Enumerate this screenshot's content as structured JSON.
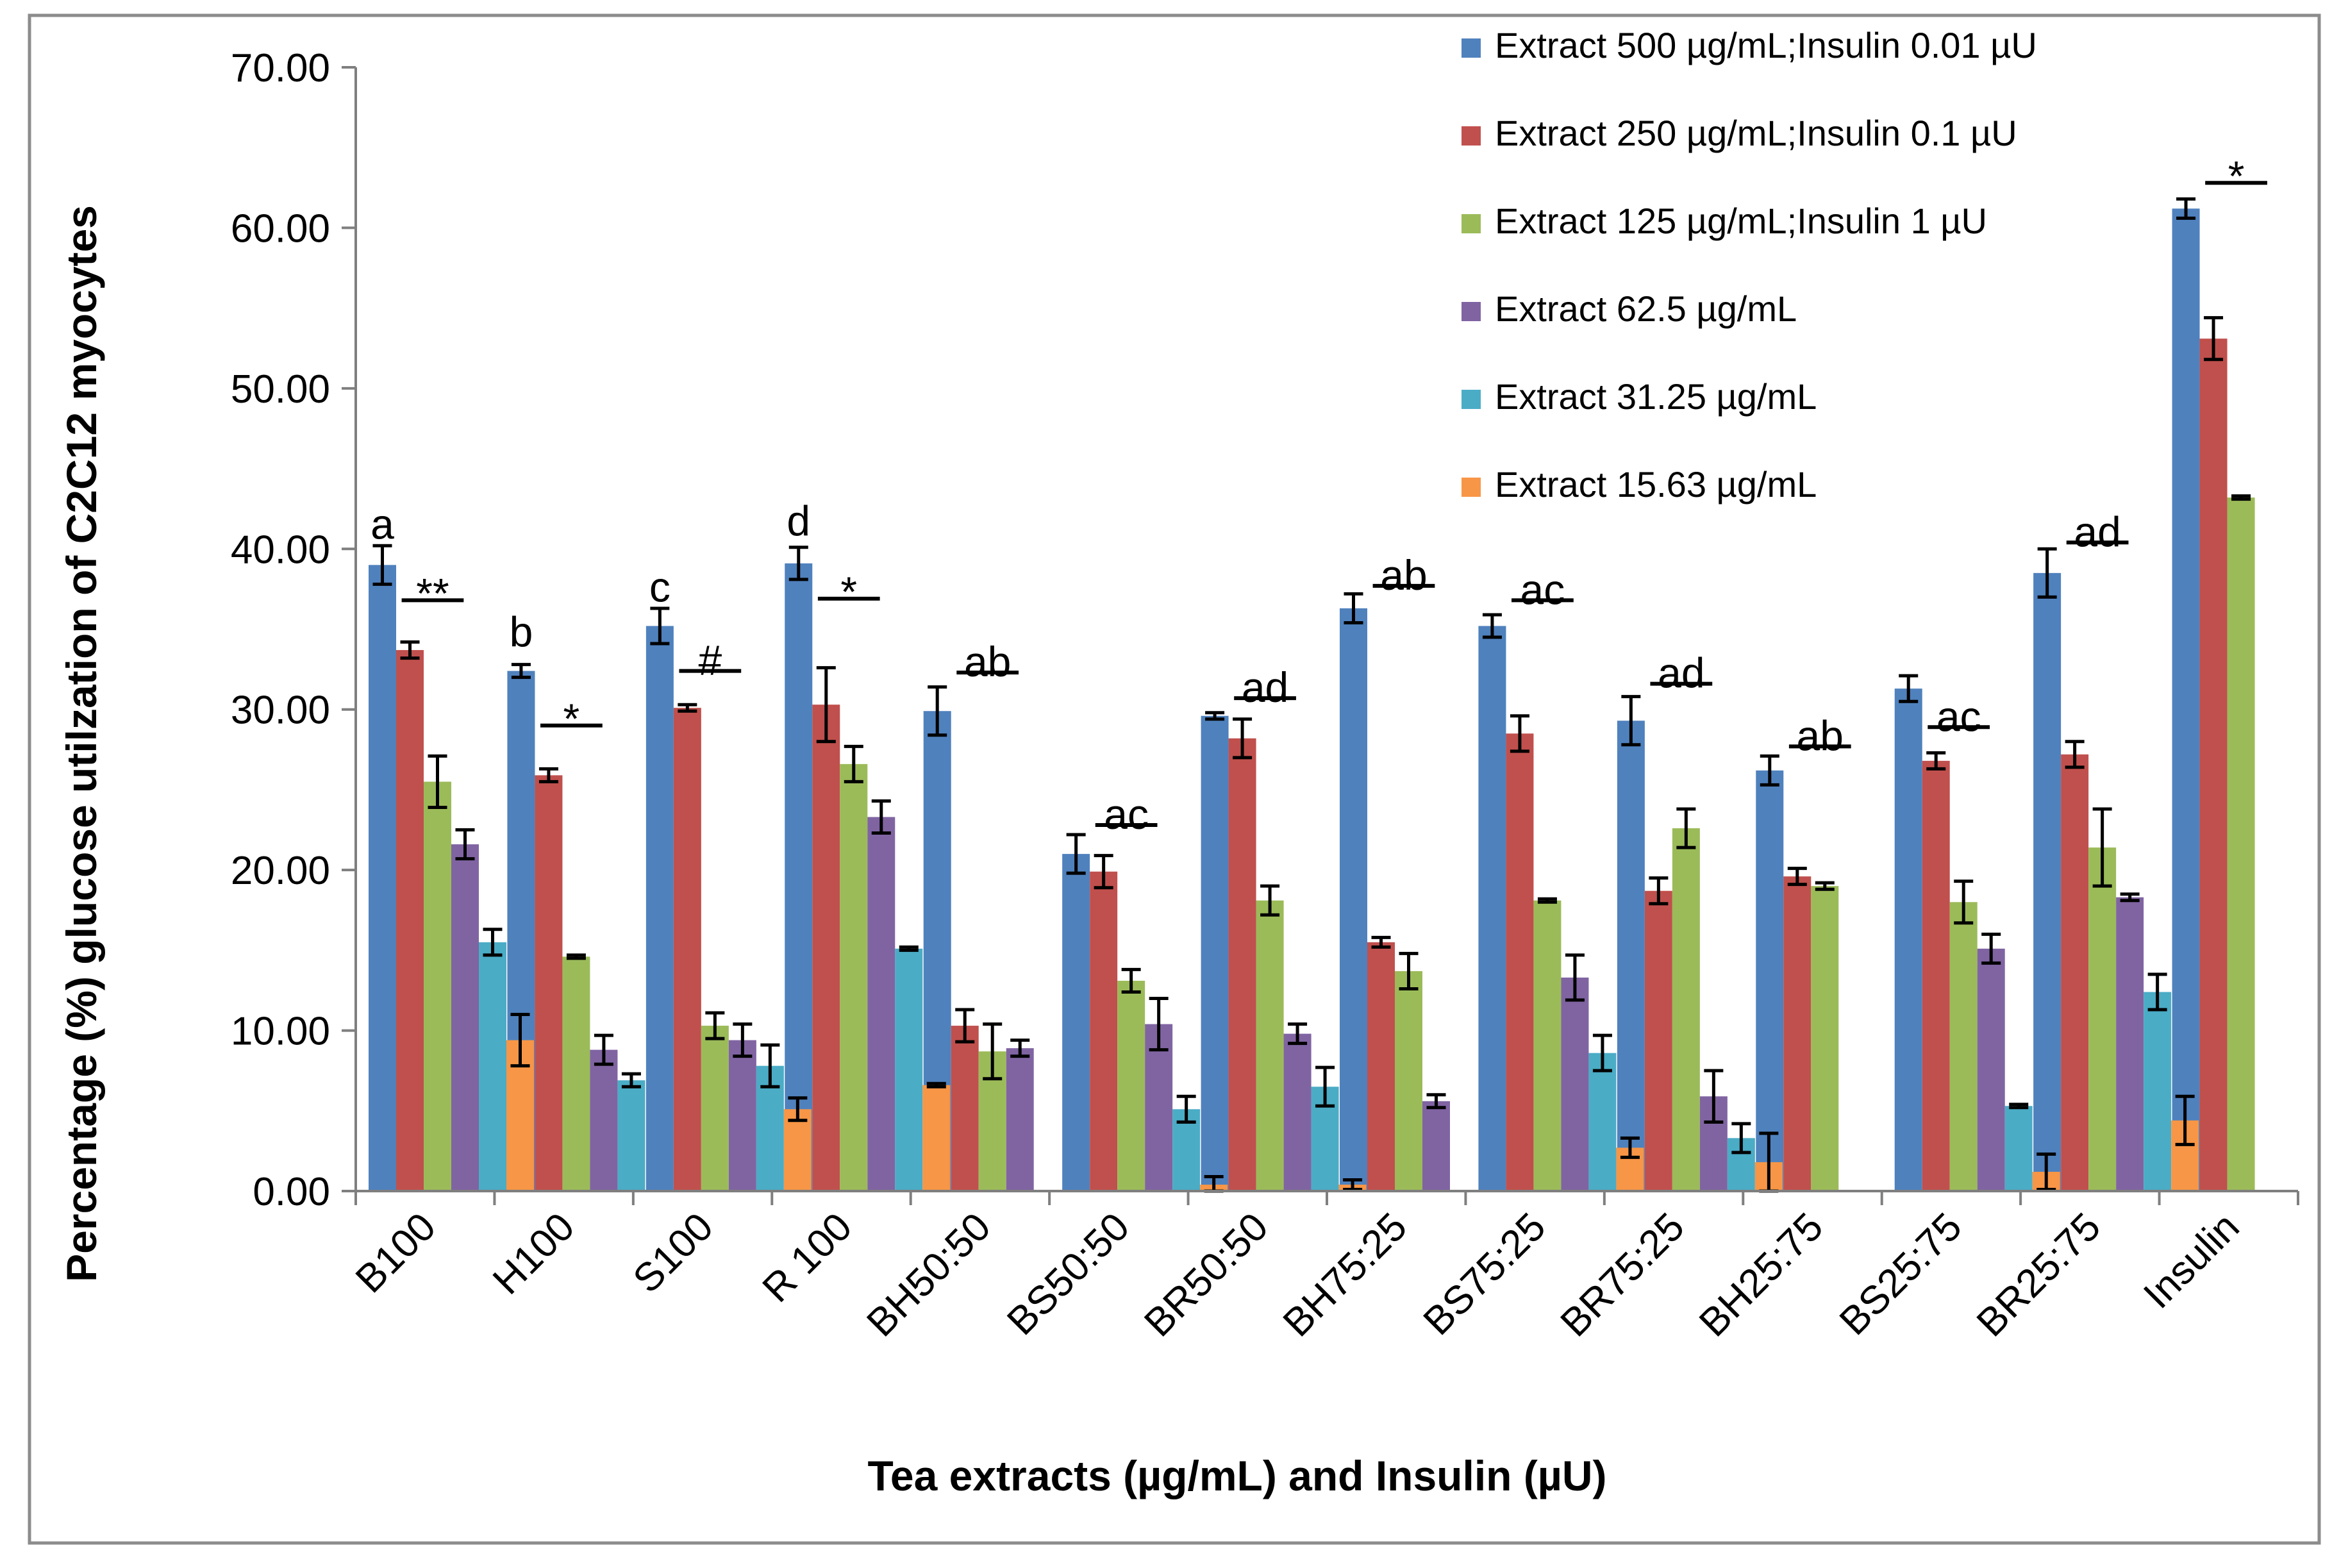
{
  "chart_data": {
    "type": "bar",
    "title": "",
    "xlabel": "Tea extracts (µg/mL) and Insulin (µU)",
    "ylabel": "Percentage (%) glucose utilzation of C2C12 myocytes",
    "ylim": [
      0,
      70
    ],
    "yticks": [
      "0.00",
      "10.00",
      "20.00",
      "30.00",
      "40.00",
      "50.00",
      "60.00",
      "70.00"
    ],
    "grid": false,
    "legend_position": "top-right",
    "categories": [
      "B100",
      "H100",
      "S100",
      "R 100",
      "BH50:50",
      "BS50:50",
      "BR50:50",
      "BH75:25",
      "BS75:25",
      "BR75:25",
      "BH25:75",
      "BS25:75",
      "BR25:75",
      "Insulin"
    ],
    "series": [
      {
        "name": "Extract 500 µg/mL;Insulin 0.01 µU",
        "color": "#4f81bd",
        "values": [
          39.0,
          32.4,
          35.2,
          39.1,
          29.9,
          21.0,
          29.6,
          36.3,
          35.2,
          29.3,
          26.2,
          31.3,
          38.5,
          61.2
        ],
        "errors": [
          1.2,
          0.4,
          1.1,
          1.0,
          1.5,
          1.2,
          0.2,
          0.9,
          0.7,
          1.5,
          0.9,
          0.8,
          1.5,
          0.6
        ]
      },
      {
        "name": "Extract 250 µg/mL;Insulin 0.1 µU",
        "color": "#c0504d",
        "values": [
          33.7,
          25.9,
          30.1,
          30.3,
          10.3,
          19.9,
          28.2,
          15.5,
          28.5,
          18.7,
          19.6,
          26.8,
          27.2,
          53.1
        ],
        "errors": [
          0.5,
          0.4,
          0.2,
          2.3,
          1.0,
          1.0,
          1.2,
          0.3,
          1.1,
          0.8,
          0.5,
          0.5,
          0.8,
          1.3
        ]
      },
      {
        "name": "Extract 125 µg/mL;Insulin 1 µU",
        "color": "#9bbb59",
        "values": [
          25.5,
          14.6,
          10.3,
          26.6,
          8.7,
          13.1,
          18.1,
          13.7,
          18.1,
          22.6,
          19.0,
          18.0,
          21.4,
          43.2
        ],
        "errors": [
          1.6,
          0.1,
          0.8,
          1.1,
          1.7,
          0.7,
          0.9,
          1.1,
          0.1,
          1.2,
          0.2,
          1.3,
          2.4,
          0.1
        ]
      },
      {
        "name": "Extract 62.5 µg/mL",
        "color": "#8064a2",
        "values": [
          21.6,
          8.8,
          9.4,
          23.3,
          8.9,
          10.4,
          9.8,
          5.6,
          13.3,
          5.9,
          0,
          15.1,
          18.3,
          0
        ],
        "errors": [
          0.9,
          0.9,
          1.0,
          1.0,
          0.5,
          1.6,
          0.6,
          0.4,
          1.4,
          1.6,
          0,
          0.9,
          0.2,
          0
        ]
      },
      {
        "name": "Extract 31.25 µg/mL",
        "color": "#4bacc6",
        "values": [
          15.5,
          6.9,
          7.8,
          15.1,
          0,
          5.1,
          6.5,
          0,
          8.6,
          3.3,
          0,
          5.3,
          12.4,
          0
        ],
        "errors": [
          0.8,
          0.4,
          1.3,
          0.1,
          0,
          0.8,
          1.2,
          0,
          1.1,
          0.9,
          0,
          0.1,
          1.1,
          0
        ]
      },
      {
        "name": "Extract 15.63 µg/mL",
        "color": "#f79646",
        "values": [
          9.4,
          0,
          5.1,
          6.6,
          0,
          0.4,
          0.4,
          0,
          2.7,
          1.8,
          0,
          1.2,
          4.4,
          0
        ],
        "errors": [
          1.6,
          0,
          0.7,
          0.1,
          0,
          0.5,
          0.3,
          0,
          0.6,
          1.8,
          0,
          1.1,
          1.5,
          0
        ]
      }
    ],
    "annotations": [
      {
        "text": "a",
        "category": 0,
        "y": 41.5,
        "line": false
      },
      {
        "text": "**",
        "category": 0,
        "y": 36.8,
        "line": true
      },
      {
        "text": "b",
        "category": 1,
        "y": 34.8,
        "line": false
      },
      {
        "text": "*",
        "category": 1,
        "y": 29.0,
        "line": true
      },
      {
        "text": "c",
        "category": 2,
        "y": 37.6,
        "line": false
      },
      {
        "text": "#",
        "category": 2,
        "y": 32.4,
        "line": true
      },
      {
        "text": "d",
        "category": 3,
        "y": 41.7,
        "line": false
      },
      {
        "text": "*",
        "category": 3,
        "y": 36.9,
        "line": true
      },
      {
        "text": "ab",
        "category": 4,
        "y": 32.3,
        "line": true
      },
      {
        "text": "ac",
        "category": 5,
        "y": 22.8,
        "line": true
      },
      {
        "text": "ad",
        "category": 6,
        "y": 30.7,
        "line": true
      },
      {
        "text": "ab",
        "category": 7,
        "y": 37.7,
        "line": true
      },
      {
        "text": "ac",
        "category": 8,
        "y": 36.8,
        "line": true
      },
      {
        "text": "ad",
        "category": 9,
        "y": 31.6,
        "line": true
      },
      {
        "text": "ab",
        "category": 10,
        "y": 27.7,
        "line": true
      },
      {
        "text": "ac",
        "category": 11,
        "y": 28.9,
        "line": true
      },
      {
        "text": "ad",
        "category": 12,
        "y": 40.4,
        "line": true
      },
      {
        "text": "*",
        "category": 13,
        "y": 62.8,
        "line": true
      }
    ]
  }
}
